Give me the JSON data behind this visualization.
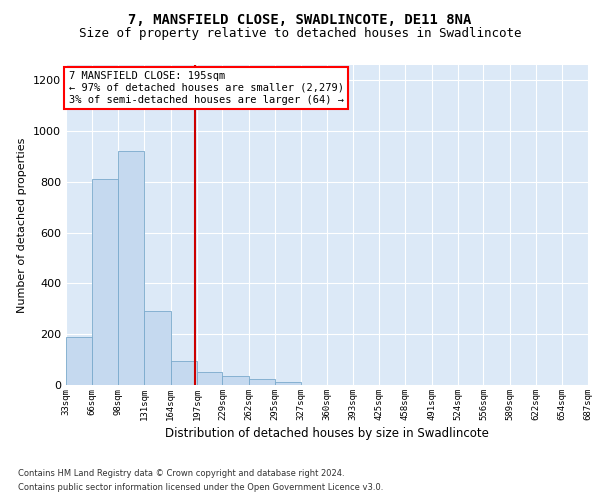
{
  "title": "7, MANSFIELD CLOSE, SWADLINCOTE, DE11 8NA",
  "subtitle": "Size of property relative to detached houses in Swadlincote",
  "xlabel": "Distribution of detached houses by size in Swadlincote",
  "ylabel": "Number of detached properties",
  "bin_edges": [
    33,
    66,
    98,
    131,
    164,
    197,
    229,
    262,
    295,
    327,
    360,
    393,
    425,
    458,
    491,
    524,
    556,
    589,
    622,
    654,
    687
  ],
  "bar_heights": [
    190,
    810,
    920,
    290,
    95,
    50,
    35,
    25,
    10,
    0,
    0,
    0,
    0,
    0,
    0,
    0,
    0,
    0,
    0,
    0
  ],
  "bar_color": "#c5d9ef",
  "bar_edge_color": "#7aaacc",
  "property_line_x": 195,
  "property_line_color": "#cc0000",
  "annotation_box_text": "7 MANSFIELD CLOSE: 195sqm\n← 97% of detached houses are smaller (2,279)\n3% of semi-detached houses are larger (64) →",
  "ylim": [
    0,
    1260
  ],
  "yticks": [
    0,
    200,
    400,
    600,
    800,
    1000,
    1200
  ],
  "background_color": "#dce9f7",
  "footnote1": "Contains HM Land Registry data © Crown copyright and database right 2024.",
  "footnote2": "Contains public sector information licensed under the Open Government Licence v3.0.",
  "title_fontsize": 10,
  "subtitle_fontsize": 9,
  "ylabel_fontsize": 8,
  "xlabel_fontsize": 8.5,
  "tick_labels": [
    "33sqm",
    "66sqm",
    "98sqm",
    "131sqm",
    "164sqm",
    "197sqm",
    "229sqm",
    "262sqm",
    "295sqm",
    "327sqm",
    "360sqm",
    "393sqm",
    "425sqm",
    "458sqm",
    "491sqm",
    "524sqm",
    "556sqm",
    "589sqm",
    "622sqm",
    "654sqm",
    "687sqm"
  ]
}
